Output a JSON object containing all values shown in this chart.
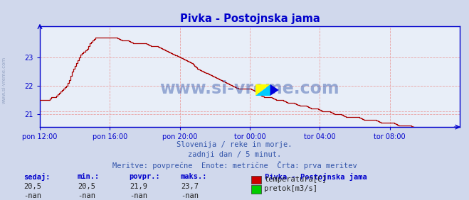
{
  "title": "Pivka - Postojnska jama",
  "bg_color": "#d0d8ec",
  "plot_bg_color": "#e8eef8",
  "grid_color": "#e8a0a0",
  "line_color": "#aa0000",
  "axis_color": "#0000cc",
  "text_color": "#3355aa",
  "subtitle_lines": [
    "Slovenija / reke in morje.",
    "zadnji dan / 5 minut.",
    "Meritve: povprečne  Enote: metrične  Črta: prva meritev"
  ],
  "xlabel_ticks": [
    "pon 12:00",
    "pon 16:00",
    "pon 20:00",
    "tor 00:00",
    "tor 04:00",
    "tor 08:00"
  ],
  "ylabel_ticks": [
    21,
    22,
    23
  ],
  "ylim": [
    20.55,
    24.1
  ],
  "xlim": [
    0,
    288
  ],
  "tick_positions": [
    0,
    48,
    96,
    144,
    192,
    240
  ],
  "footer_labels": [
    "sedaj:",
    "min.:",
    "povpr.:",
    "maks.:"
  ],
  "footer_values_temp": [
    "20,5",
    "20,5",
    "21,9",
    "23,7"
  ],
  "footer_values_flow": [
    "-nan",
    "-nan",
    "-nan",
    "-nan"
  ],
  "legend_title": "Pivka - Postojnska jama",
  "legend_items": [
    {
      "label": "temperatura[C]",
      "color": "#cc0000"
    },
    {
      "label": "pretok[m3/s]",
      "color": "#00cc00"
    }
  ],
  "watermark": "www.si-vreme.com",
  "watermark_color": "#3355aa",
  "sidewatermark": "www.si-vreme.com",
  "sidewatermark_color": "#8899bb",
  "temp_profile": [
    [
      0,
      21.5
    ],
    [
      6,
      21.5
    ],
    [
      8,
      21.6
    ],
    [
      10,
      21.6
    ],
    [
      12,
      21.7
    ],
    [
      14,
      21.8
    ],
    [
      16,
      21.9
    ],
    [
      18,
      22.0
    ],
    [
      20,
      22.2
    ],
    [
      22,
      22.5
    ],
    [
      24,
      22.7
    ],
    [
      26,
      22.9
    ],
    [
      28,
      23.1
    ],
    [
      30,
      23.2
    ],
    [
      32,
      23.3
    ],
    [
      34,
      23.5
    ],
    [
      36,
      23.6
    ],
    [
      38,
      23.7
    ],
    [
      40,
      23.7
    ],
    [
      42,
      23.7
    ],
    [
      44,
      23.7
    ],
    [
      46,
      23.7
    ],
    [
      48,
      23.7
    ],
    [
      52,
      23.7
    ],
    [
      56,
      23.6
    ],
    [
      60,
      23.6
    ],
    [
      64,
      23.5
    ],
    [
      68,
      23.5
    ],
    [
      72,
      23.5
    ],
    [
      76,
      23.4
    ],
    [
      80,
      23.4
    ],
    [
      84,
      23.3
    ],
    [
      88,
      23.2
    ],
    [
      92,
      23.1
    ],
    [
      96,
      23.0
    ],
    [
      100,
      22.9
    ],
    [
      104,
      22.8
    ],
    [
      108,
      22.6
    ],
    [
      112,
      22.5
    ],
    [
      116,
      22.4
    ],
    [
      120,
      22.3
    ],
    [
      124,
      22.2
    ],
    [
      128,
      22.1
    ],
    [
      132,
      22.0
    ],
    [
      136,
      21.9
    ],
    [
      140,
      21.9
    ],
    [
      144,
      21.9
    ],
    [
      148,
      21.8
    ],
    [
      150,
      21.7
    ],
    [
      154,
      21.6
    ],
    [
      158,
      21.6
    ],
    [
      162,
      21.5
    ],
    [
      166,
      21.5
    ],
    [
      170,
      21.4
    ],
    [
      174,
      21.4
    ],
    [
      178,
      21.3
    ],
    [
      182,
      21.3
    ],
    [
      186,
      21.2
    ],
    [
      190,
      21.2
    ],
    [
      194,
      21.1
    ],
    [
      198,
      21.1
    ],
    [
      202,
      21.0
    ],
    [
      206,
      21.0
    ],
    [
      210,
      20.9
    ],
    [
      214,
      20.9
    ],
    [
      218,
      20.9
    ],
    [
      222,
      20.8
    ],
    [
      226,
      20.8
    ],
    [
      230,
      20.8
    ],
    [
      234,
      20.7
    ],
    [
      238,
      20.7
    ],
    [
      242,
      20.7
    ],
    [
      246,
      20.6
    ],
    [
      250,
      20.6
    ],
    [
      254,
      20.6
    ],
    [
      258,
      20.5
    ],
    [
      262,
      20.5
    ],
    [
      266,
      20.5
    ],
    [
      270,
      20.5
    ],
    [
      274,
      20.5
    ],
    [
      278,
      20.5
    ],
    [
      282,
      20.5
    ],
    [
      288,
      20.5
    ]
  ]
}
